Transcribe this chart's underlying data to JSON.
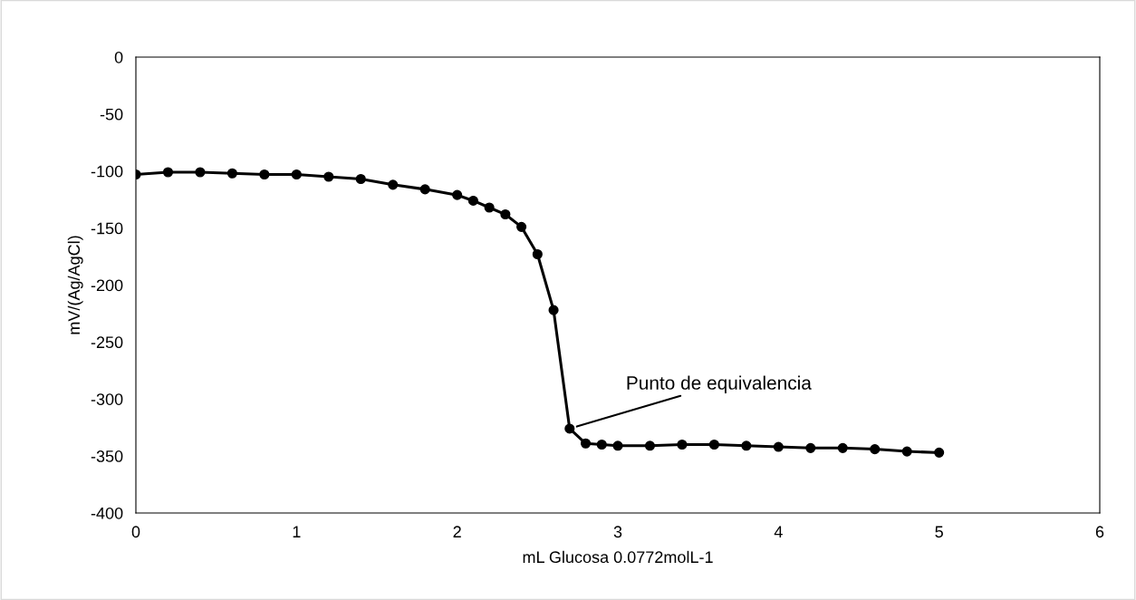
{
  "chart_data": {
    "type": "line",
    "xlabel": "mL Glucosa 0.0772molL-1",
    "ylabel": "mV/(Ag/AgCl)",
    "x": [
      0,
      0.2,
      0.4,
      0.6,
      0.8,
      1.0,
      1.2,
      1.4,
      1.6,
      1.8,
      2.0,
      2.1,
      2.2,
      2.3,
      2.4,
      2.5,
      2.6,
      2.7,
      2.8,
      2.9,
      3.0,
      3.2,
      3.4,
      3.6,
      3.8,
      4.0,
      4.2,
      4.4,
      4.6,
      4.8,
      5.0
    ],
    "series": [
      {
        "color": "#000000",
        "values": [
          -103,
          -101,
          -101,
          -102,
          -103,
          -103,
          -105,
          -107,
          -112,
          -116,
          -121,
          -126,
          -132,
          -138,
          -149,
          -173,
          -222,
          -326,
          -339,
          -340,
          -341,
          -341,
          -340,
          -340,
          -341,
          -342,
          -343,
          -343,
          -344,
          -346,
          -347
        ]
      }
    ],
    "marker": "circle",
    "line_style": "solid",
    "grid": false,
    "legend": false,
    "xlim": [
      0,
      6
    ],
    "xticks": [
      0,
      1,
      2,
      3,
      4,
      5,
      6
    ],
    "ylim": [
      -400,
      0
    ],
    "yticks": [
      -400,
      -350,
      -300,
      -250,
      -200,
      -150,
      -100,
      -50,
      0
    ],
    "annotations": [
      {
        "text": "Punto de equivalencia",
        "x": 2.7,
        "y": -326
      }
    ]
  }
}
